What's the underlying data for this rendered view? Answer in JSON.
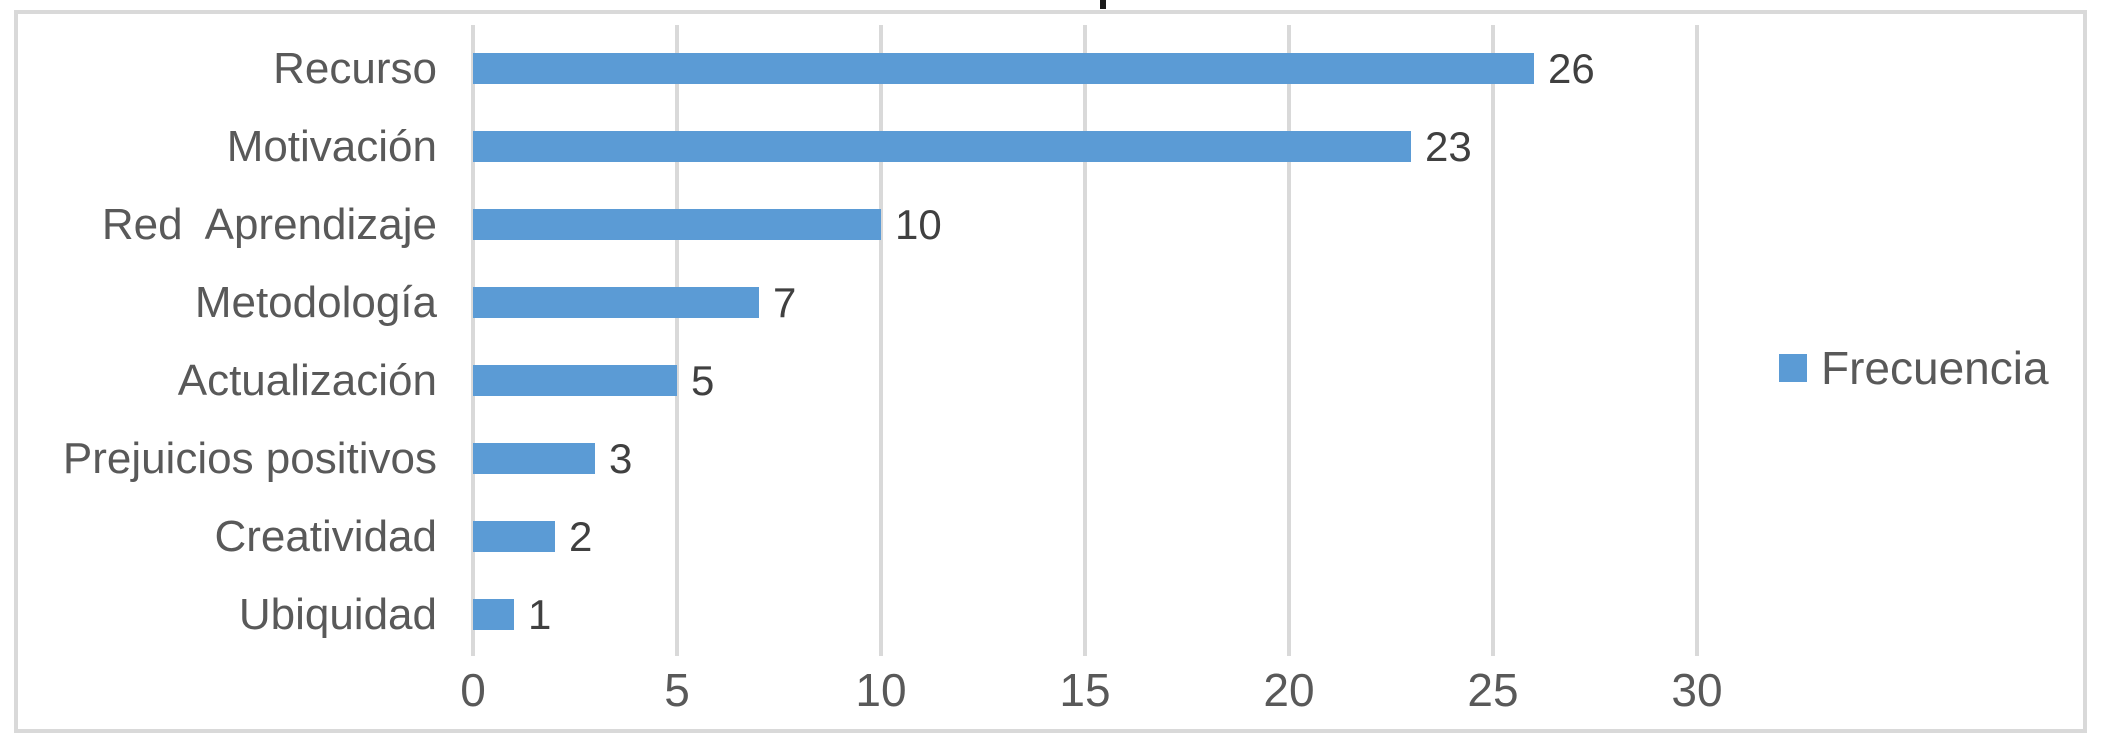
{
  "chart_data": {
    "type": "bar",
    "orientation": "horizontal",
    "title": "",
    "cropped_title_mark": "p-descender",
    "categories": [
      "Recurso",
      "Motivación",
      "Red  Aprendizaje",
      "Metodología",
      "Actualización",
      "Prejuicios positivos",
      "Creatividad",
      "Ubiquidad"
    ],
    "series": [
      {
        "name": "Frecuencia",
        "values": [
          26,
          23,
          10,
          7,
          5,
          3,
          2,
          1
        ]
      }
    ],
    "data_labels": [
      "26",
      "23",
      "10",
      "7",
      "5",
      "3",
      "2",
      "1"
    ],
    "xticks": [
      "0",
      "5",
      "10",
      "15",
      "20",
      "25",
      "30"
    ],
    "xtick_values": [
      0,
      5,
      10,
      15,
      20,
      25,
      30
    ],
    "xlim": [
      0,
      30
    ],
    "xlabel": "",
    "ylabel": "",
    "grid": "vertical-on",
    "legend_position": "right-middle",
    "colors": {
      "bar": "#5B9BD5",
      "gridline": "#D9D9D9",
      "frame_border": "#D9D9D9",
      "category_label": "#595959",
      "tick_label": "#595959",
      "value_label": "#404040",
      "background": "#FFFFFF"
    }
  },
  "legend": {
    "label": "Frecuencia"
  }
}
